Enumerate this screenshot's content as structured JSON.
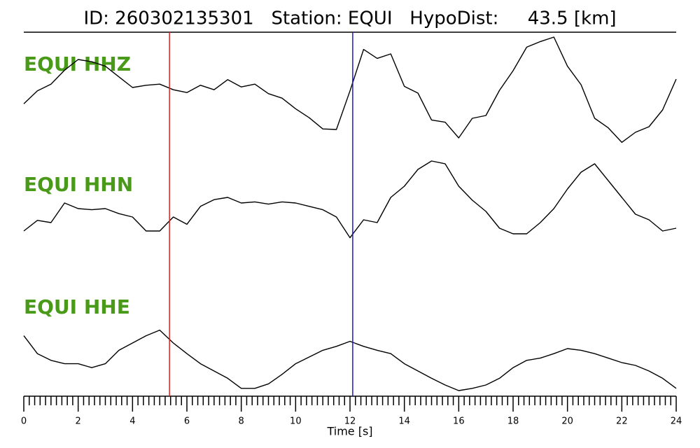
{
  "chart_data": {
    "type": "line",
    "title": "ID: 260302135301   Station: EQUI   HypoDist:     43.5 [km]",
    "x_label": "Time [s]",
    "x": [
      0,
      0.5,
      1,
      1.5,
      2,
      2.5,
      3,
      3.5,
      4,
      4.5,
      5,
      5.5,
      6,
      6.5,
      7,
      7.5,
      8,
      8.5,
      9,
      9.5,
      10,
      10.5,
      11,
      11.5,
      12,
      12.5,
      13,
      13.5,
      14,
      14.5,
      15,
      15.5,
      16,
      16.5,
      17,
      17.5,
      18,
      18.5,
      19,
      19.5,
      20,
      20.5,
      21,
      21.5,
      22,
      22.5,
      23,
      23.5,
      24
    ],
    "series": [
      {
        "name": "EQUI HHZ",
        "color": "#000000",
        "values": [
          -0.29,
          -0.06,
          0.06,
          0.31,
          0.5,
          0.46,
          0.38,
          0.19,
          0,
          0.04,
          0.06,
          -0.04,
          -0.09,
          0.04,
          -0.04,
          0.14,
          0.01,
          0.06,
          -0.11,
          -0.19,
          -0.38,
          -0.54,
          -0.74,
          -0.75,
          -0.06,
          0.68,
          0.52,
          0.6,
          0.02,
          -0.1,
          -0.58,
          -0.62,
          -0.9,
          -0.55,
          -0.5,
          -0.05,
          0.3,
          0.72,
          0.82,
          0.9,
          0.38,
          0.05,
          -0.55,
          -0.72,
          -0.98,
          -0.8,
          -0.7,
          -0.4,
          0.15
        ]
      },
      {
        "name": "EQUI HHN",
        "color": "#000000",
        "values": [
          -0.5,
          -0.31,
          -0.35,
          0,
          -0.1,
          -0.12,
          -0.1,
          -0.19,
          -0.25,
          -0.5,
          -0.5,
          -0.25,
          -0.38,
          -0.06,
          0.06,
          0.1,
          0,
          0.02,
          -0.02,
          0.02,
          0,
          -0.06,
          -0.12,
          -0.25,
          -0.62,
          -0.3,
          -0.35,
          0.1,
          0.3,
          0.6,
          0.75,
          0.7,
          0.3,
          0.05,
          -0.15,
          -0.45,
          -0.55,
          -0.55,
          -0.35,
          -0.1,
          0.25,
          0.55,
          0.7,
          0.4,
          0.1,
          -0.2,
          -0.3,
          -0.5,
          -0.45
        ]
      },
      {
        "name": "EQUI HHE",
        "color": "#000000",
        "values": [
          0.38,
          0.06,
          -0.06,
          -0.12,
          -0.12,
          -0.19,
          -0.12,
          0.12,
          0.25,
          0.38,
          0.48,
          0.25,
          0.06,
          -0.12,
          -0.25,
          -0.38,
          -0.56,
          -0.56,
          -0.48,
          -0.31,
          -0.12,
          0,
          0.12,
          0.19,
          0.28,
          0.19,
          0.12,
          0.06,
          -0.12,
          -0.25,
          -0.38,
          -0.5,
          -0.6,
          -0.56,
          -0.5,
          -0.38,
          -0.19,
          -0.06,
          -0.02,
          0.06,
          0.15,
          0.12,
          0.06,
          -0.02,
          -0.1,
          -0.15,
          -0.25,
          -0.38,
          -0.56
        ]
      }
    ],
    "label_color": "#4a9a1a",
    "picks": [
      {
        "color": "#e02020",
        "time": 5.36
      },
      {
        "color": "#1a1ad0",
        "time": 12.1
      }
    ],
    "xlim": [
      0,
      24
    ],
    "xticks": [
      0,
      2,
      4,
      6,
      8,
      10,
      12,
      14,
      16,
      18,
      20,
      22,
      24
    ],
    "xminorticks": [
      0.2,
      0.4,
      0.6,
      0.8,
      1,
      1.2,
      1.4,
      1.6,
      1.8,
      2.2,
      2.4,
      2.6,
      2.8,
      3,
      3.2,
      3.4,
      3.6,
      3.8,
      4.2,
      4.4,
      4.6,
      4.8,
      5,
      5.2,
      5.4,
      5.6,
      5.8,
      6.2,
      6.4,
      6.6,
      6.8,
      7,
      7.2,
      7.4,
      7.6,
      7.8,
      8.2,
      8.4,
      8.6,
      8.8,
      9,
      9.2,
      9.4,
      9.6,
      9.8,
      10.2,
      10.4,
      10.6,
      10.8,
      11,
      11.2,
      11.4,
      11.6,
      11.8,
      12.2,
      12.4,
      12.6,
      12.8,
      13,
      13.2,
      13.4,
      13.6,
      13.8,
      14.2,
      14.4,
      14.6,
      14.8,
      15,
      15.2,
      15.4,
      15.6,
      15.8,
      16.2,
      16.4,
      16.6,
      16.8,
      17,
      17.2,
      17.4,
      17.6,
      17.8,
      18.2,
      18.4,
      18.6,
      18.8,
      19,
      19.2,
      19.4,
      19.6,
      19.8,
      20.2,
      20.4,
      20.6,
      20.8,
      21,
      21.2,
      21.4,
      21.6,
      21.8,
      22.2,
      22.4,
      22.6,
      22.8,
      23,
      23.2,
      23.4,
      23.6,
      23.8
    ]
  }
}
